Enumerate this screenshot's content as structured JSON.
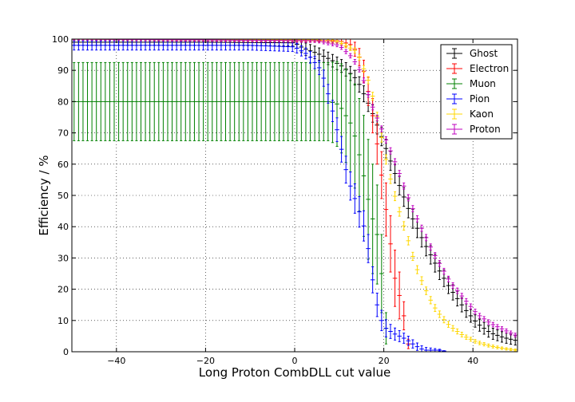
{
  "chart_data": {
    "type": "scatter",
    "title": "",
    "xlabel": "Long Proton CombDLL cut value",
    "ylabel": "Efficiency / %",
    "xlim": [
      -50,
      50
    ],
    "ylim": [
      0,
      100
    ],
    "x_ticks": [
      -40,
      -20,
      0,
      20,
      40
    ],
    "y_ticks": [
      0,
      10,
      20,
      30,
      40,
      50,
      60,
      70,
      80,
      90,
      100
    ],
    "grid": true,
    "legend_position": "top-right",
    "x_step": 1,
    "series": [
      {
        "name": "Ghost",
        "color": "#000000",
        "knots": [
          [
            -50,
            99
          ],
          [
            -20,
            99
          ],
          [
            0,
            98.8
          ],
          [
            2,
            97
          ],
          [
            5,
            95.5
          ],
          [
            8,
            93.5
          ],
          [
            11,
            91
          ],
          [
            14,
            87
          ],
          [
            17,
            78
          ],
          [
            20,
            67
          ],
          [
            23,
            55
          ],
          [
            26,
            44
          ],
          [
            29,
            35
          ],
          [
            32,
            27
          ],
          [
            35,
            20
          ],
          [
            38,
            14
          ],
          [
            41,
            9
          ],
          [
            44,
            6
          ],
          [
            47,
            4.5
          ],
          [
            50,
            3.5
          ]
        ],
        "err_knots": [
          [
            -50,
            1
          ],
          [
            0,
            1
          ],
          [
            2,
            2
          ],
          [
            10,
            2
          ],
          [
            20,
            3
          ],
          [
            30,
            3
          ],
          [
            40,
            2
          ],
          [
            50,
            1.5
          ]
        ]
      },
      {
        "name": "Electron",
        "color": "#ff0000",
        "knots": [
          [
            -50,
            100
          ],
          [
            10,
            99.5
          ],
          [
            13,
            98
          ],
          [
            15,
            93
          ],
          [
            17,
            80
          ],
          [
            19,
            62
          ],
          [
            21,
            40
          ],
          [
            23,
            18
          ],
          [
            24,
            18
          ],
          [
            25,
            5
          ],
          [
            26,
            0
          ],
          [
            50,
            0
          ]
        ],
        "err_knots": [
          [
            -50,
            0.3
          ],
          [
            10,
            0.5
          ],
          [
            15,
            3
          ],
          [
            18,
            6
          ],
          [
            21,
            9
          ],
          [
            23,
            9
          ],
          [
            25,
            3
          ],
          [
            26,
            0
          ],
          [
            50,
            0
          ]
        ]
      },
      {
        "name": "Muon",
        "color": "#008000",
        "knots": [
          [
            -50,
            80
          ],
          [
            8,
            80
          ],
          [
            10,
            79
          ],
          [
            13,
            72
          ],
          [
            15,
            60
          ],
          [
            17,
            45
          ],
          [
            19,
            35
          ],
          [
            20,
            15
          ],
          [
            21,
            0
          ],
          [
            50,
            0
          ]
        ],
        "err_knots": [
          [
            -50,
            12.5
          ],
          [
            8,
            12.5
          ],
          [
            13,
            16
          ],
          [
            16,
            20
          ],
          [
            19,
            15
          ],
          [
            20,
            10
          ],
          [
            21,
            0
          ],
          [
            50,
            0
          ]
        ]
      },
      {
        "name": "Pion",
        "color": "#0000ff",
        "knots": [
          [
            -50,
            98
          ],
          [
            -10,
            98
          ],
          [
            0,
            97.5
          ],
          [
            3,
            95
          ],
          [
            6,
            90
          ],
          [
            8,
            80
          ],
          [
            10,
            68
          ],
          [
            12,
            55
          ],
          [
            14,
            47
          ],
          [
            16,
            38
          ],
          [
            17,
            28
          ],
          [
            18,
            18
          ],
          [
            19,
            12
          ],
          [
            20,
            8
          ],
          [
            22,
            6
          ],
          [
            25,
            4
          ],
          [
            27,
            2
          ],
          [
            29,
            0.5
          ],
          [
            33,
            0.5
          ],
          [
            34,
            0
          ],
          [
            50,
            0
          ]
        ],
        "err_knots": [
          [
            -50,
            1.5
          ],
          [
            0,
            1.5
          ],
          [
            5,
            2
          ],
          [
            10,
            4
          ],
          [
            15,
            5
          ],
          [
            18,
            4
          ],
          [
            22,
            2
          ],
          [
            30,
            0.8
          ],
          [
            34,
            0
          ],
          [
            50,
            0
          ]
        ]
      },
      {
        "name": "Kaon",
        "color": "#ffd700",
        "knots": [
          [
            -50,
            100
          ],
          [
            5,
            99.8
          ],
          [
            10,
            99
          ],
          [
            14,
            96
          ],
          [
            17,
            85
          ],
          [
            19,
            72
          ],
          [
            21,
            58
          ],
          [
            23,
            47
          ],
          [
            25,
            38
          ],
          [
            27,
            28
          ],
          [
            29,
            21
          ],
          [
            31,
            15
          ],
          [
            33,
            11
          ],
          [
            35,
            8
          ],
          [
            38,
            5
          ],
          [
            41,
            3
          ],
          [
            44,
            1.8
          ],
          [
            47,
            1
          ],
          [
            50,
            0.5
          ]
        ],
        "err_knots": [
          [
            -50,
            0.3
          ],
          [
            10,
            0.5
          ],
          [
            20,
            1.5
          ],
          [
            30,
            1.2
          ],
          [
            40,
            0.6
          ],
          [
            50,
            0.3
          ]
        ]
      },
      {
        "name": "Proton",
        "color": "#bf00bf",
        "knots": [
          [
            -50,
            100
          ],
          [
            5,
            99.5
          ],
          [
            10,
            98
          ],
          [
            13,
            94
          ],
          [
            15,
            89
          ],
          [
            17,
            80
          ],
          [
            19,
            73
          ],
          [
            21,
            66
          ],
          [
            23,
            59
          ],
          [
            25,
            51
          ],
          [
            27,
            44
          ],
          [
            29,
            38
          ],
          [
            31,
            32
          ],
          [
            33,
            27
          ],
          [
            35,
            22
          ],
          [
            38,
            17
          ],
          [
            41,
            12
          ],
          [
            44,
            9
          ],
          [
            47,
            7
          ],
          [
            50,
            5
          ]
        ],
        "err_knots": [
          [
            -50,
            0.3
          ],
          [
            10,
            0.6
          ],
          [
            20,
            1
          ],
          [
            30,
            1
          ],
          [
            40,
            0.8
          ],
          [
            50,
            0.6
          ]
        ]
      }
    ]
  }
}
